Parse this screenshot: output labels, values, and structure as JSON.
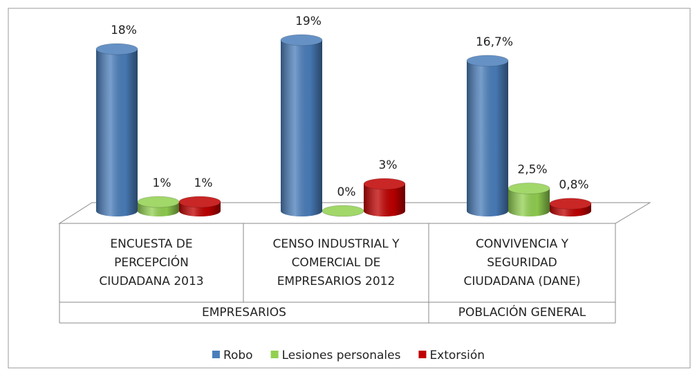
{
  "chart_data": {
    "type": "bar3d",
    "categories": [
      "ENCUESTA DE\nPERCEPCIÓN\nCIUDADANA 2013",
      "CENSO INDUSTRIAL Y\nCOMERCIAL DE\nEMPRESARIOS 2012",
      "CONVIVENCIA Y\nSEGURIDAD\nCIUDADANA (DANE)"
    ],
    "group_labels": [
      "EMPRESARIOS",
      "EMPRESARIOS",
      "POBLACIÓN GENERAL"
    ],
    "series": [
      {
        "name": "Robo",
        "color": "#4a7ebb",
        "values": [
          18,
          19,
          16.7
        ],
        "value_labels": [
          "18%",
          "19%",
          "16,7%"
        ]
      },
      {
        "name": "Lesiones personales",
        "color": "#92d050",
        "values": [
          1,
          0,
          2.5
        ],
        "value_labels": [
          "1%",
          "0%",
          "2,5%"
        ]
      },
      {
        "name": "Extorsión",
        "color": "#c00000",
        "values": [
          1,
          3,
          0.8
        ],
        "value_labels": [
          "1%",
          "3%",
          "0,8%"
        ]
      }
    ],
    "legend": "bottom"
  }
}
